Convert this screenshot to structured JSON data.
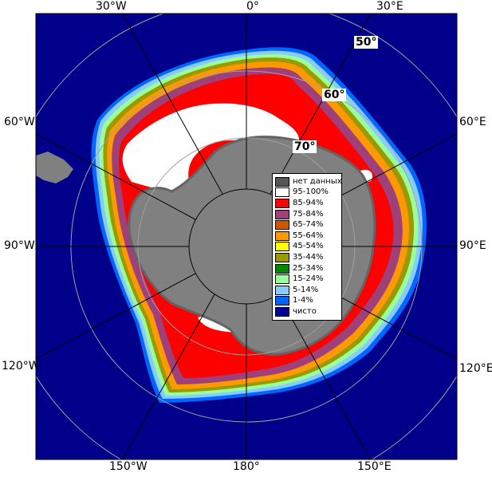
{
  "map": {
    "colors": {
      "ocean": "#00008b",
      "land": "#808080",
      "land_edge": "#646464",
      "ice_95_100": "#ffffff",
      "ice_85_94": "#ff0000",
      "ice_75_84": "#a0407a",
      "ice_65_74": "#cc5500",
      "ice_55_64": "#ff9900",
      "ice_45_54": "#ffff00",
      "ice_35_44": "#999900",
      "ice_25_34": "#008800",
      "ice_15_24": "#99ff99",
      "ice_5_14": "#88ccff",
      "ice_1_4": "#0066ff",
      "graticule": "#a0a0a0",
      "frame": "#000000"
    },
    "longitude_labels": {
      "top_30w": "30°W",
      "top_0": "0°",
      "top_30e": "30°E",
      "left_60w": "60°W",
      "left_90w": "90°W",
      "left_120w": "120°W",
      "right_60e": "60°E",
      "right_90e": "90°E",
      "right_120e": "120°E",
      "bottom_150w": "150°W",
      "bottom_180": "180°",
      "bottom_150e": "150°E"
    },
    "latitude_labels": {
      "lat_50": "50°",
      "lat_60": "60°",
      "lat_70": "70°"
    },
    "legend": {
      "items": [
        {
          "label": "нет данных",
          "color": "#555555"
        },
        {
          "label": "95-100%",
          "color": "#ffffff"
        },
        {
          "label": "85-94%",
          "color": "#ff0000"
        },
        {
          "label": "75-84%",
          "color": "#a0407a"
        },
        {
          "label": "65-74%",
          "color": "#cc5500"
        },
        {
          "label": "55-64%",
          "color": "#ff9900"
        },
        {
          "label": "45-54%",
          "color": "#ffff00"
        },
        {
          "label": "35-44%",
          "color": "#999900"
        },
        {
          "label": "25-34%",
          "color": "#008800"
        },
        {
          "label": "15-24%",
          "color": "#99ff99"
        },
        {
          "label": "5-14%",
          "color": "#88ccff"
        },
        {
          "label": "1-4%",
          "color": "#0066ff"
        },
        {
          "label": "чисто",
          "color": "#000099"
        }
      ]
    }
  }
}
